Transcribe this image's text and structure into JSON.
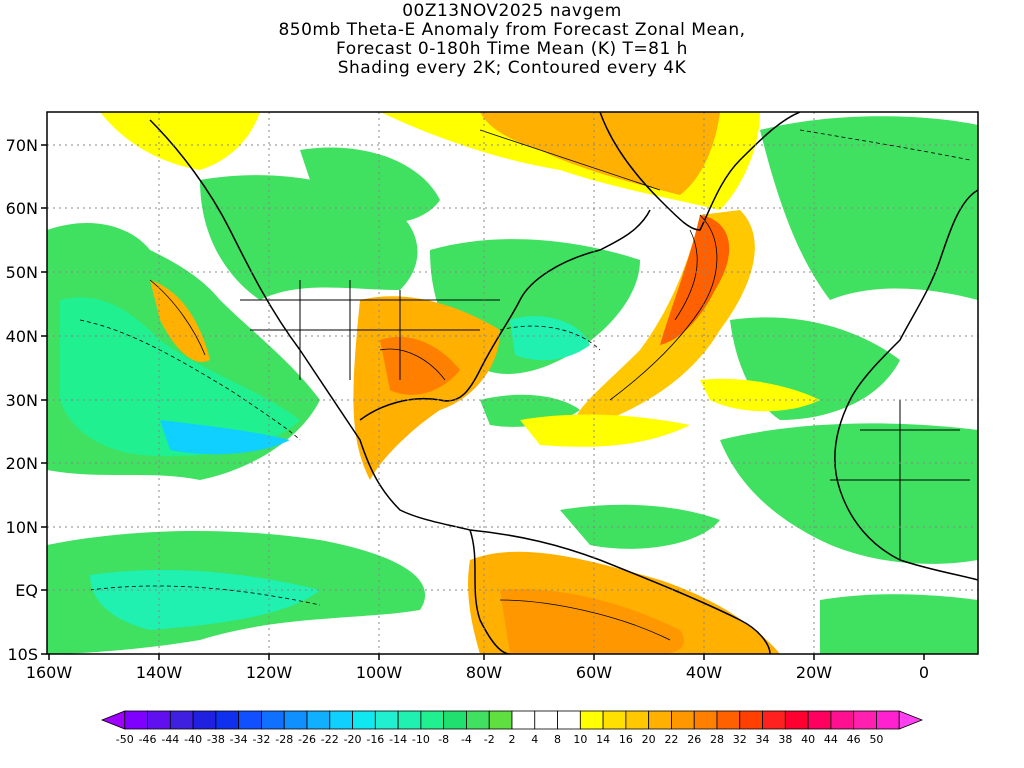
{
  "header": {
    "title_lines": [
      "00Z13NOV2025 navgem",
      "850mb Theta-E Anomaly from Forecast Zonal Mean,",
      "Forecast 0-180h Time Mean (K) T=81 h",
      "Shading every 2K; Contoured every 4K"
    ]
  },
  "map": {
    "lon_range": [
      -160,
      10
    ],
    "lat_range": [
      -10,
      75
    ],
    "lon_labels": [
      "160W",
      "140W",
      "120W",
      "100W",
      "80W",
      "60W",
      "40W",
      "20W",
      "0"
    ],
    "lat_labels": [
      "70N",
      "60N",
      "50N",
      "40N",
      "30N",
      "20N",
      "10N",
      "EQ",
      "10S"
    ],
    "grid": "dotted",
    "field": "850mb Theta-E Anomaly (K)"
  },
  "colorbar": {
    "labels": [
      "-50",
      "-46",
      "-44",
      "-40",
      "-38",
      "-34",
      "-32",
      "-28",
      "-26",
      "-22",
      "-20",
      "-16",
      "-14",
      "-10",
      "-8",
      "-4",
      "-2",
      "2",
      "4",
      "8",
      "10",
      "14",
      "16",
      "20",
      "22",
      "26",
      "28",
      "32",
      "34",
      "38",
      "40",
      "44",
      "46",
      "50"
    ],
    "colors": [
      "#a000ff",
      "#8000ff",
      "#6010f0",
      "#4020e0",
      "#2020e0",
      "#1030f0",
      "#1050ff",
      "#1070ff",
      "#1090ff",
      "#10b0ff",
      "#10d0ff",
      "#10e8f0",
      "#20f0d0",
      "#20f0b0",
      "#20f090",
      "#20e070",
      "#40e060",
      "#60e040",
      "#ffffff",
      "#ffffff",
      "#ffffff",
      "#ffff00",
      "#ffe000",
      "#ffc800",
      "#ffb000",
      "#ff9800",
      "#ff8000",
      "#ff6000",
      "#ff4000",
      "#ff2020",
      "#ff0030",
      "#ff0060",
      "#ff1090",
      "#ff20b0",
      "#ff20d0",
      "#ff40f0"
    ]
  }
}
